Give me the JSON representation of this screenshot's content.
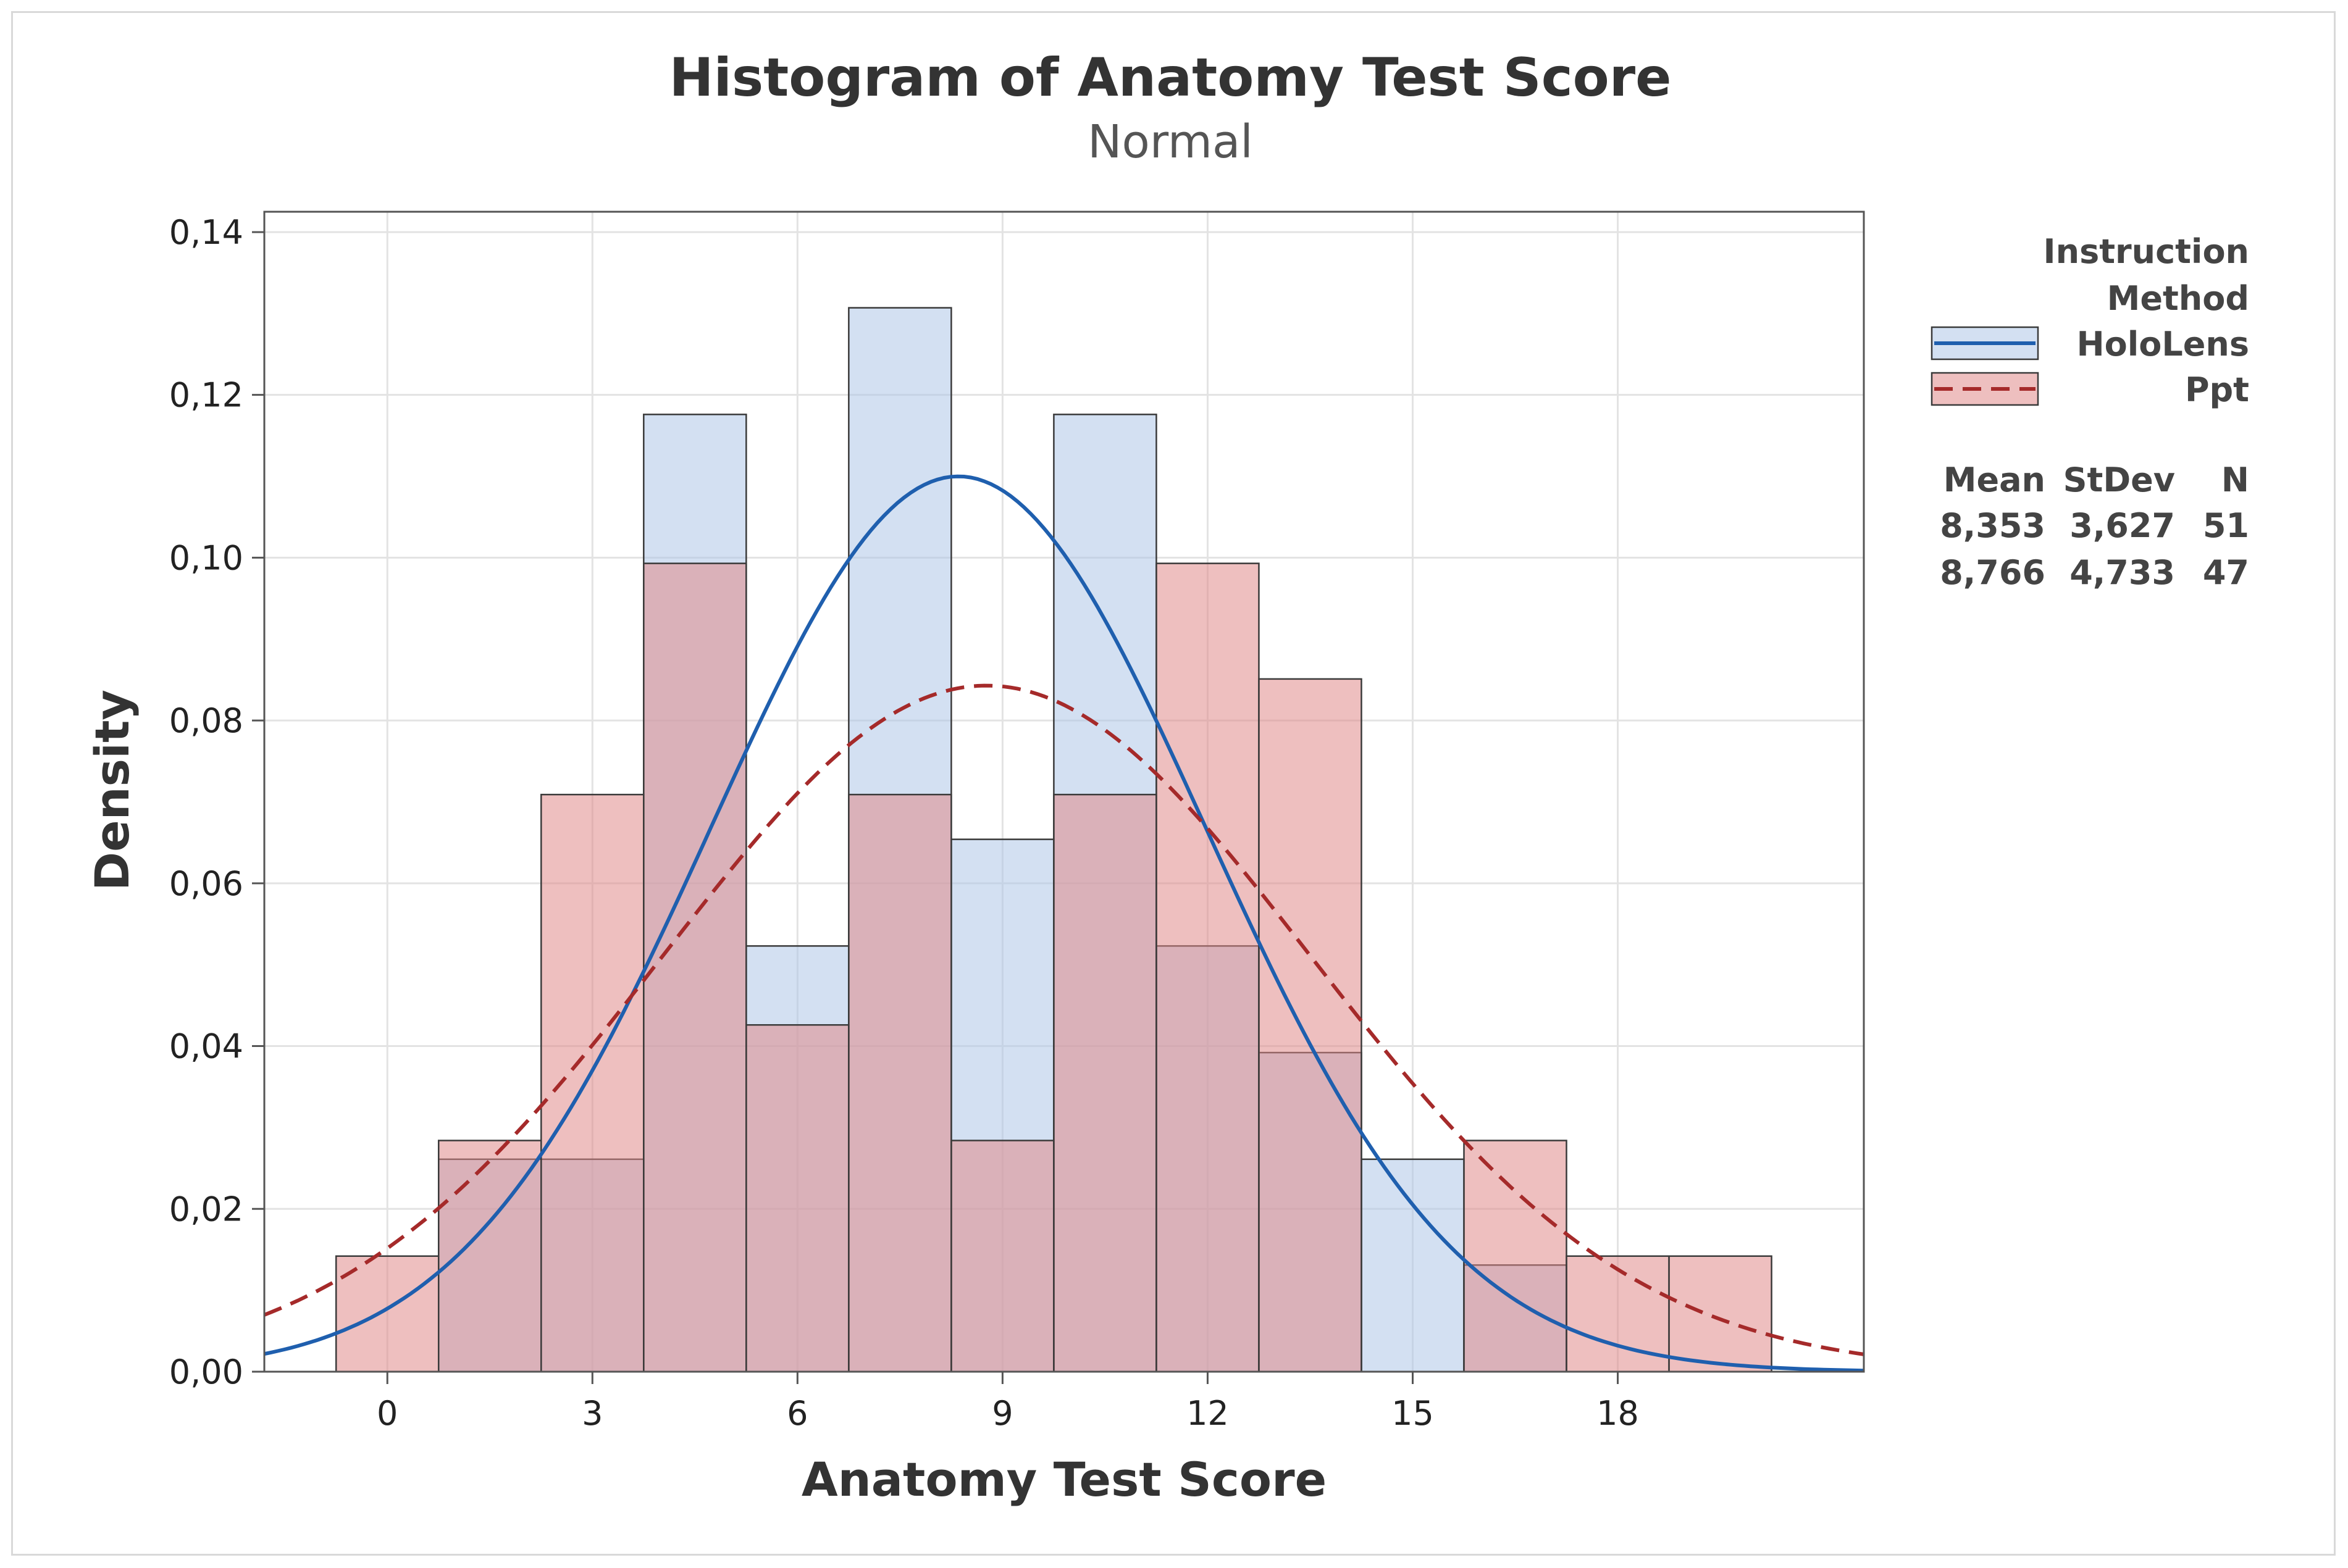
{
  "chart_data": {
    "type": "bar",
    "title": "Histogram of Anatomy Test Score",
    "subtitle": "Normal",
    "xlabel": "Anatomy Test Score",
    "ylabel": "Density",
    "xlim": [
      -1.8,
      21.6
    ],
    "ylim": [
      0,
      0.1425
    ],
    "x_ticks": [
      0,
      3,
      6,
      9,
      12,
      15,
      18
    ],
    "x_tick_labels": [
      "0",
      "3",
      "6",
      "9",
      "12",
      "15",
      "18"
    ],
    "y_ticks": [
      0,
      0.02,
      0.04,
      0.06,
      0.08,
      0.1,
      0.12,
      0.14
    ],
    "y_tick_labels": [
      "0,00",
      "0,02",
      "0,04",
      "0,06",
      "0,08",
      "0,10",
      "0,12",
      "0,14"
    ],
    "bin_edges": [
      -0.75,
      0.75,
      2.25,
      3.75,
      5.25,
      6.75,
      8.25,
      9.75,
      11.25,
      12.75,
      14.25,
      15.75,
      17.25,
      18.75,
      20.25
    ],
    "grid": true,
    "legend_position": "right",
    "legend_title": [
      "Instruction",
      "Method"
    ],
    "series": [
      {
        "name": "HoloLens",
        "color": "#1f5fae",
        "fill": "#aec7e8",
        "line_style": "solid",
        "values": [
          0,
          0.0261,
          0.0261,
          0.1176,
          0.0523,
          0.1307,
          0.0654,
          0.1176,
          0.0523,
          0.0392,
          0.0261,
          0.0131,
          0,
          0
        ],
        "mean": 8.353,
        "stdev": 3.627,
        "n": 51
      },
      {
        "name": "Ppt",
        "color": "#a52a2a",
        "fill": "#e08a8a",
        "line_style": "dashed",
        "values": [
          0.0142,
          0.0284,
          0.0709,
          0.0993,
          0.0426,
          0.0709,
          0.0284,
          0.0709,
          0.0993,
          0.0851,
          0,
          0.0284,
          0.0142,
          0.0142
        ],
        "mean": 8.766,
        "stdev": 4.733,
        "n": 47
      }
    ],
    "stats_table": {
      "headers": [
        "Mean",
        "StDev",
        "N"
      ],
      "rows": [
        [
          "8,353",
          "3,627",
          "51"
        ],
        [
          "8,766",
          "4,733",
          "47"
        ]
      ]
    }
  }
}
